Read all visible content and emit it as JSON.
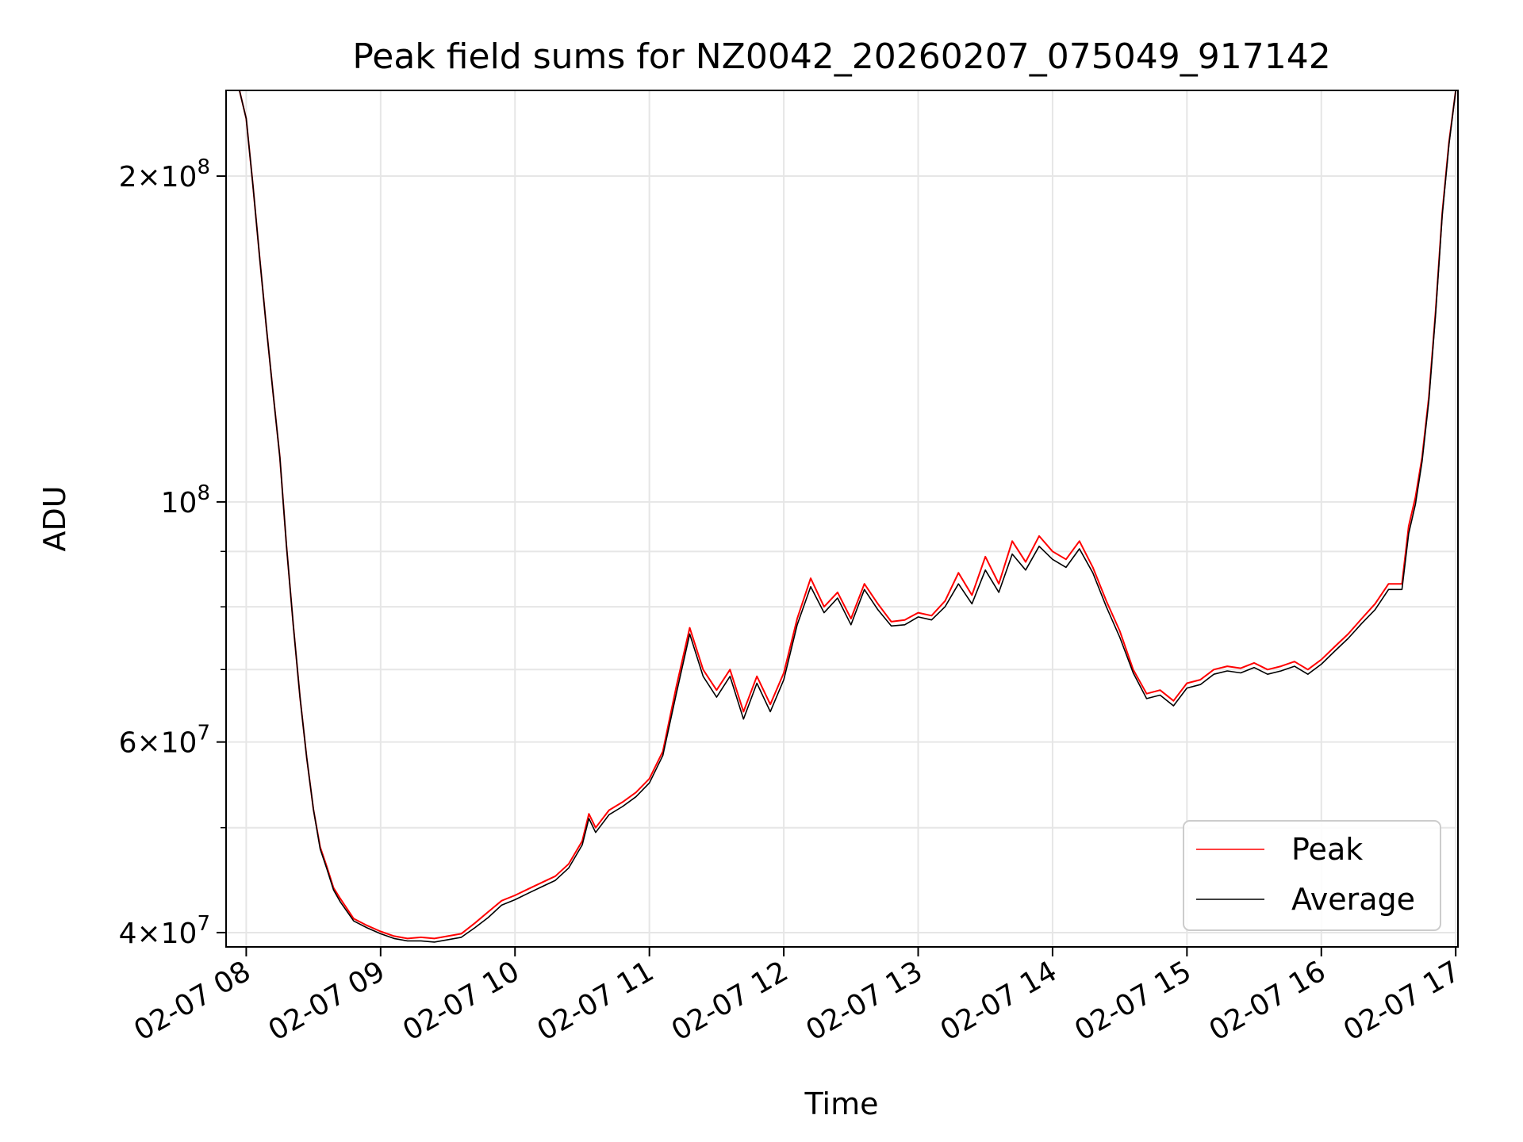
{
  "chart_data": {
    "type": "line",
    "title": "Peak field sums for NZ0042_20260207_075049_917142",
    "xlabel": "Time",
    "ylabel": "ADU",
    "yscale": "log",
    "ylim": [
      38800000,
      240000000
    ],
    "xlim": [
      "2026-02-07 07:51",
      "2026-02-07 17:01"
    ],
    "grid": true,
    "legend_position": "lower-right",
    "x_tick_labels": [
      "02-07 08",
      "02-07 09",
      "02-07 10",
      "02-07 11",
      "02-07 12",
      "02-07 13",
      "02-07 14",
      "02-07 15",
      "02-07 16",
      "02-07 17"
    ],
    "y_tick_labels": [
      {
        "value": 40000000,
        "mantissa": "4",
        "exponent": "7"
      },
      {
        "value": 60000000,
        "mantissa": "6",
        "exponent": "7"
      },
      {
        "value": 100000000,
        "mantissa": "",
        "exponent": "8"
      },
      {
        "value": 200000000,
        "mantissa": "2",
        "exponent": "8"
      }
    ],
    "x": [
      "2026-02-07 07:51",
      "2026-02-07 07:57",
      "2026-02-07 08:00",
      "2026-02-07 08:03",
      "2026-02-07 08:06",
      "2026-02-07 08:09",
      "2026-02-07 08:12",
      "2026-02-07 08:15",
      "2026-02-07 08:18",
      "2026-02-07 08:21",
      "2026-02-07 08:24",
      "2026-02-07 08:27",
      "2026-02-07 08:30",
      "2026-02-07 08:33",
      "2026-02-07 08:36",
      "2026-02-07 08:39",
      "2026-02-07 08:42",
      "2026-02-07 08:48",
      "2026-02-07 08:54",
      "2026-02-07 09:00",
      "2026-02-07 09:06",
      "2026-02-07 09:12",
      "2026-02-07 09:18",
      "2026-02-07 09:24",
      "2026-02-07 09:30",
      "2026-02-07 09:36",
      "2026-02-07 09:42",
      "2026-02-07 09:48",
      "2026-02-07 09:54",
      "2026-02-07 10:00",
      "2026-02-07 10:06",
      "2026-02-07 10:12",
      "2026-02-07 10:18",
      "2026-02-07 10:24",
      "2026-02-07 10:30",
      "2026-02-07 10:33",
      "2026-02-07 10:36",
      "2026-02-07 10:42",
      "2026-02-07 10:48",
      "2026-02-07 10:54",
      "2026-02-07 11:00",
      "2026-02-07 11:06",
      "2026-02-07 11:12",
      "2026-02-07 11:18",
      "2026-02-07 11:24",
      "2026-02-07 11:30",
      "2026-02-07 11:36",
      "2026-02-07 11:42",
      "2026-02-07 11:48",
      "2026-02-07 11:54",
      "2026-02-07 12:00",
      "2026-02-07 12:06",
      "2026-02-07 12:12",
      "2026-02-07 12:18",
      "2026-02-07 12:24",
      "2026-02-07 12:30",
      "2026-02-07 12:36",
      "2026-02-07 12:42",
      "2026-02-07 12:48",
      "2026-02-07 12:54",
      "2026-02-07 13:00",
      "2026-02-07 13:06",
      "2026-02-07 13:12",
      "2026-02-07 13:18",
      "2026-02-07 13:24",
      "2026-02-07 13:30",
      "2026-02-07 13:36",
      "2026-02-07 13:42",
      "2026-02-07 13:48",
      "2026-02-07 13:54",
      "2026-02-07 14:00",
      "2026-02-07 14:06",
      "2026-02-07 14:12",
      "2026-02-07 14:18",
      "2026-02-07 14:24",
      "2026-02-07 14:30",
      "2026-02-07 14:36",
      "2026-02-07 14:42",
      "2026-02-07 14:48",
      "2026-02-07 14:54",
      "2026-02-07 15:00",
      "2026-02-07 15:06",
      "2026-02-07 15:12",
      "2026-02-07 15:18",
      "2026-02-07 15:24",
      "2026-02-07 15:30",
      "2026-02-07 15:36",
      "2026-02-07 15:42",
      "2026-02-07 15:48",
      "2026-02-07 15:54",
      "2026-02-07 16:00",
      "2026-02-07 16:06",
      "2026-02-07 16:12",
      "2026-02-07 16:18",
      "2026-02-07 16:24",
      "2026-02-07 16:30",
      "2026-02-07 16:36",
      "2026-02-07 16:39",
      "2026-02-07 16:42",
      "2026-02-07 16:45",
      "2026-02-07 16:48",
      "2026-02-07 16:51",
      "2026-02-07 16:54",
      "2026-02-07 16:57",
      "2026-02-07 17:00"
    ],
    "series": [
      {
        "name": "Peak",
        "color": "#ff0000",
        "values": [
          240000000,
          240000000,
          226000000,
          196000000,
          168000000,
          145000000,
          126000000,
          110000000,
          91000000,
          77000000,
          66000000,
          58000000,
          52000000,
          48000000,
          46000000,
          44000000,
          43000000,
          41200000,
          40600000,
          40100000,
          39700000,
          39500000,
          39600000,
          39500000,
          39700000,
          39900000,
          40800000,
          41800000,
          42800000,
          43300000,
          43900000,
          44500000,
          45100000,
          46300000,
          48600000,
          51500000,
          50000000,
          51900000,
          52800000,
          53900000,
          55500000,
          58800000,
          67500000,
          76500000,
          70000000,
          67000000,
          70000000,
          64000000,
          69000000,
          65000000,
          69500000,
          78000000,
          85000000,
          80000000,
          82500000,
          78000000,
          84000000,
          80500000,
          77500000,
          77800000,
          79000000,
          78500000,
          81000000,
          86000000,
          82000000,
          89000000,
          84000000,
          92000000,
          88000000,
          93000000,
          90000000,
          88500000,
          92000000,
          87000000,
          81000000,
          76000000,
          70000000,
          66500000,
          67000000,
          65500000,
          68000000,
          68500000,
          70000000,
          70500000,
          70200000,
          71000000,
          70000000,
          70500000,
          71200000,
          70000000,
          71500000,
          73500000,
          75500000,
          78000000,
          80500000,
          84000000,
          84000000,
          95000000,
          101000000,
          110000000,
          125000000,
          150000000,
          185000000,
          215000000,
          240000000
        ]
      },
      {
        "name": "Average",
        "color": "#000000",
        "values": [
          240000000,
          240000000,
          226000000,
          196000000,
          168000000,
          145000000,
          126000000,
          110000000,
          91000000,
          77000000,
          66000000,
          58000000,
          52000000,
          47800000,
          45800000,
          43800000,
          42700000,
          41000000,
          40400000,
          39900000,
          39500000,
          39300000,
          39300000,
          39200000,
          39400000,
          39600000,
          40400000,
          41300000,
          42400000,
          42900000,
          43500000,
          44100000,
          44700000,
          45900000,
          48200000,
          51000000,
          49500000,
          51400000,
          52300000,
          53400000,
          55000000,
          58300000,
          66500000,
          75500000,
          69000000,
          66000000,
          69000000,
          63000000,
          68000000,
          64000000,
          68500000,
          77000000,
          83500000,
          79000000,
          81500000,
          77000000,
          83000000,
          79500000,
          76800000,
          77000000,
          78300000,
          77800000,
          80000000,
          84000000,
          80500000,
          86500000,
          82500000,
          89500000,
          86500000,
          91000000,
          88500000,
          87000000,
          90500000,
          86000000,
          80000000,
          75000000,
          69500000,
          65800000,
          66300000,
          64800000,
          67300000,
          67800000,
          69300000,
          69800000,
          69500000,
          70300000,
          69300000,
          69800000,
          70500000,
          69300000,
          70800000,
          72800000,
          74800000,
          77200000,
          79500000,
          83000000,
          83000000,
          93500000,
          99500000,
          109000000,
          124000000,
          149000000,
          184000000,
          214000000,
          240000000
        ]
      }
    ]
  }
}
